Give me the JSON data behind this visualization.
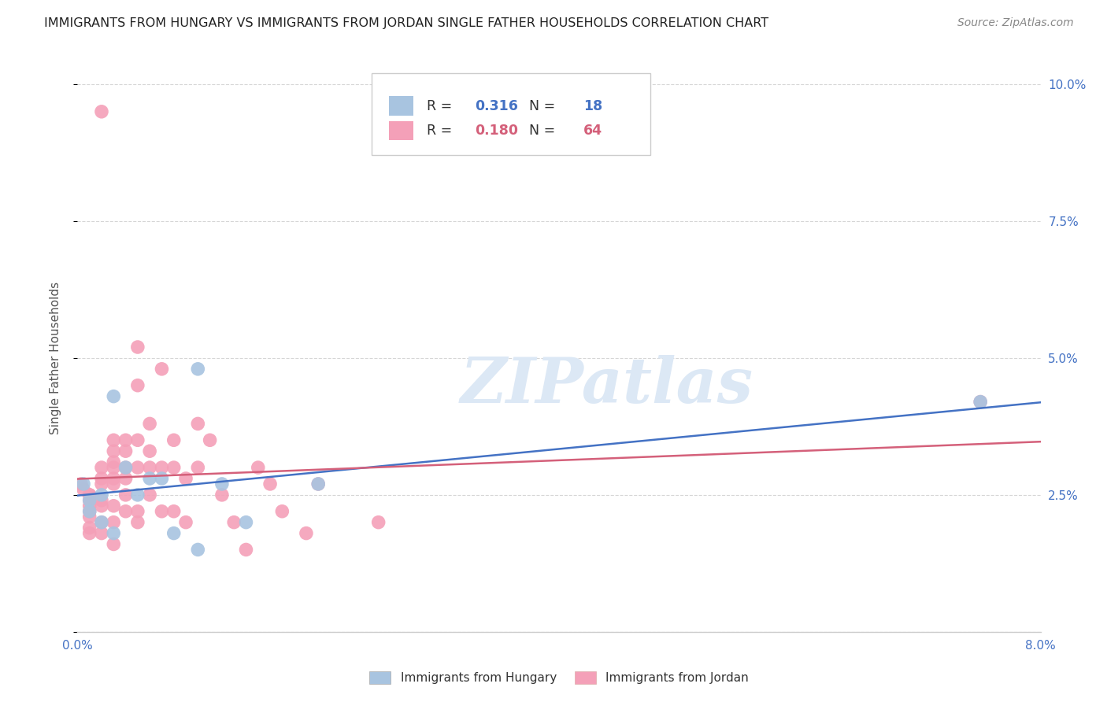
{
  "title": "IMMIGRANTS FROM HUNGARY VS IMMIGRANTS FROM JORDAN SINGLE FATHER HOUSEHOLDS CORRELATION CHART",
  "source": "Source: ZipAtlas.com",
  "ylabel": "Single Father Households",
  "xlim": [
    0.0,
    0.08
  ],
  "ylim": [
    0.0,
    0.1
  ],
  "xtick_positions": [
    0.0,
    0.01,
    0.02,
    0.03,
    0.04,
    0.05,
    0.06,
    0.07,
    0.08
  ],
  "xtick_labels": [
    "0.0%",
    "",
    "",
    "",
    "",
    "",
    "",
    "",
    "8.0%"
  ],
  "ytick_positions": [
    0.0,
    0.025,
    0.05,
    0.075,
    0.1
  ],
  "ytick_labels": [
    "",
    "2.5%",
    "5.0%",
    "7.5%",
    "10.0%"
  ],
  "hungary_R": 0.316,
  "hungary_N": 18,
  "jordan_R": 0.18,
  "jordan_N": 64,
  "hungary_scatter_color": "#a8c4e0",
  "jordan_scatter_color": "#f4a0b8",
  "hungary_line_color": "#4472c4",
  "jordan_line_color": "#d4607a",
  "text_color": "#222222",
  "source_color": "#888888",
  "axis_color": "#4472c4",
  "grid_color": "#cccccc",
  "watermark_text": "ZIPatlas",
  "watermark_color": "#dce8f5",
  "background_color": "#ffffff",
  "hungary_x": [
    0.0005,
    0.001,
    0.001,
    0.002,
    0.002,
    0.003,
    0.003,
    0.004,
    0.005,
    0.006,
    0.007,
    0.008,
    0.01,
    0.01,
    0.012,
    0.014,
    0.02,
    0.075
  ],
  "hungary_y": [
    0.027,
    0.022,
    0.024,
    0.025,
    0.02,
    0.018,
    0.043,
    0.03,
    0.025,
    0.028,
    0.028,
    0.018,
    0.015,
    0.048,
    0.027,
    0.02,
    0.027,
    0.042
  ],
  "jordan_x": [
    0.0003,
    0.0005,
    0.001,
    0.001,
    0.001,
    0.001,
    0.001,
    0.001,
    0.001,
    0.001,
    0.002,
    0.002,
    0.002,
    0.002,
    0.002,
    0.002,
    0.002,
    0.002,
    0.003,
    0.003,
    0.003,
    0.003,
    0.003,
    0.003,
    0.003,
    0.003,
    0.003,
    0.004,
    0.004,
    0.004,
    0.004,
    0.004,
    0.004,
    0.005,
    0.005,
    0.005,
    0.005,
    0.005,
    0.005,
    0.006,
    0.006,
    0.006,
    0.006,
    0.007,
    0.007,
    0.007,
    0.008,
    0.008,
    0.008,
    0.009,
    0.009,
    0.01,
    0.01,
    0.011,
    0.012,
    0.013,
    0.014,
    0.015,
    0.016,
    0.017,
    0.019,
    0.02,
    0.025,
    0.075
  ],
  "jordan_y": [
    0.027,
    0.026,
    0.025,
    0.025,
    0.024,
    0.023,
    0.022,
    0.021,
    0.019,
    0.018,
    0.095,
    0.03,
    0.028,
    0.027,
    0.024,
    0.023,
    0.02,
    0.018,
    0.035,
    0.033,
    0.031,
    0.03,
    0.028,
    0.027,
    0.023,
    0.02,
    0.016,
    0.035,
    0.033,
    0.03,
    0.028,
    0.025,
    0.022,
    0.052,
    0.045,
    0.035,
    0.03,
    0.022,
    0.02,
    0.038,
    0.033,
    0.03,
    0.025,
    0.048,
    0.03,
    0.022,
    0.035,
    0.03,
    0.022,
    0.028,
    0.02,
    0.038,
    0.03,
    0.035,
    0.025,
    0.02,
    0.015,
    0.03,
    0.027,
    0.022,
    0.018,
    0.027,
    0.02,
    0.042
  ]
}
